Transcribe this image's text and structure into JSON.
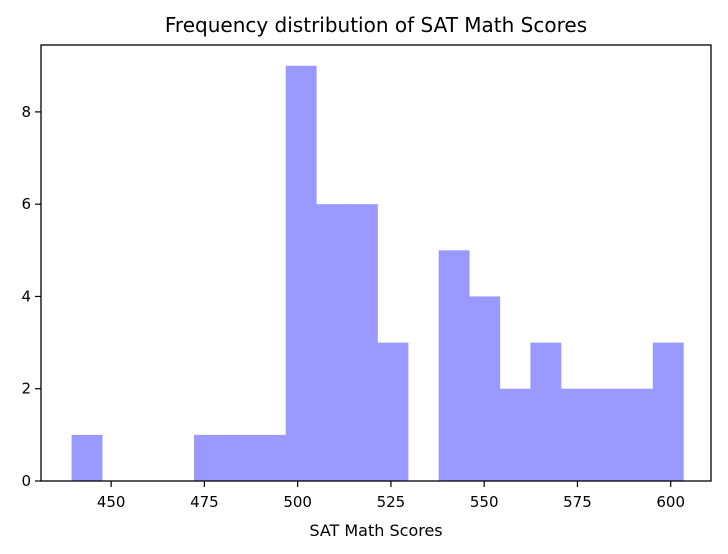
{
  "chart_data": {
    "type": "bar",
    "title": "Frequency distribution of SAT Math Scores",
    "xlabel": "SAT Math Scores",
    "ylabel": "",
    "xlim": [
      431.2,
      610.8
    ],
    "ylim": [
      0,
      9.45
    ],
    "xticks": [
      "450",
      "475",
      "500",
      "525",
      "550",
      "575",
      "600"
    ],
    "yticks": [
      "0",
      "2",
      "4",
      "6",
      "8"
    ],
    "grid": false,
    "bar_color": "#9999ff",
    "bin_width": 8.2,
    "bins": [
      {
        "start": 439.4,
        "count": 1
      },
      {
        "start": 447.6,
        "count": 0
      },
      {
        "start": 455.8,
        "count": 0
      },
      {
        "start": 464.0,
        "count": 0
      },
      {
        "start": 472.2,
        "count": 1
      },
      {
        "start": 480.4,
        "count": 1
      },
      {
        "start": 488.6,
        "count": 1
      },
      {
        "start": 496.8,
        "count": 9
      },
      {
        "start": 505.0,
        "count": 6
      },
      {
        "start": 513.2,
        "count": 6
      },
      {
        "start": 521.4,
        "count": 3
      },
      {
        "start": 529.6,
        "count": 0
      },
      {
        "start": 537.8,
        "count": 5
      },
      {
        "start": 546.0,
        "count": 4
      },
      {
        "start": 554.2,
        "count": 2
      },
      {
        "start": 562.4,
        "count": 3
      },
      {
        "start": 570.6,
        "count": 2
      },
      {
        "start": 578.8,
        "count": 2
      },
      {
        "start": 587.0,
        "count": 2
      },
      {
        "start": 595.2,
        "count": 3
      }
    ]
  }
}
